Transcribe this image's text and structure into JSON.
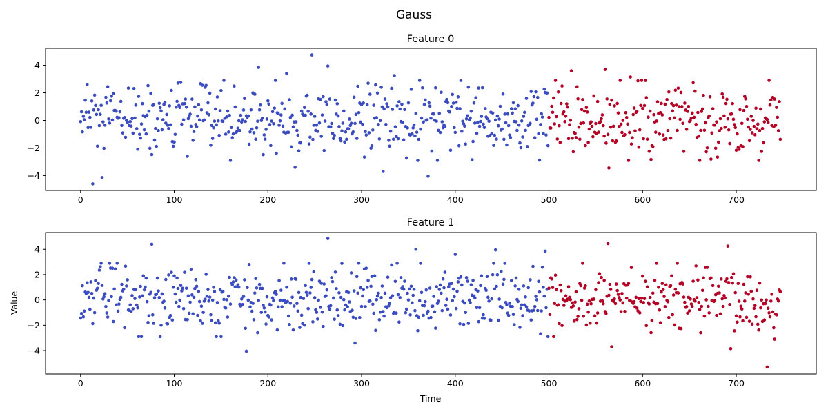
{
  "figure": {
    "suptitle": "Gauss"
  },
  "colors": {
    "blue": "#3b4cc0",
    "red": "#b40426",
    "axis": "#000000"
  },
  "chart_data": [
    {
      "type": "scatter",
      "title": "Feature 0",
      "xlabel": "",
      "ylabel": "",
      "xlim": [
        -37.4,
        785.4
      ],
      "ylim": [
        -5.08,
        5.23
      ],
      "xticks": [
        0,
        100,
        200,
        300,
        400,
        500,
        600,
        700
      ],
      "yticks": [
        -4,
        -2,
        0,
        2,
        4
      ],
      "grid": false,
      "n_points": 748,
      "segment_split": 500,
      "noise_seed": 12345,
      "highlights": [
        {
          "x": 247,
          "y": 4.75
        },
        {
          "x": 264,
          "y": 3.95
        },
        {
          "x": 190,
          "y": 3.85
        },
        {
          "x": 220,
          "y": 3.4
        },
        {
          "x": 335,
          "y": 3.25
        },
        {
          "x": 524,
          "y": 3.6
        },
        {
          "x": 560,
          "y": 3.7
        },
        {
          "x": 13,
          "y": -4.6
        },
        {
          "x": 23,
          "y": -4.15
        },
        {
          "x": 371,
          "y": -4.05
        },
        {
          "x": 323,
          "y": -3.7
        },
        {
          "x": 229,
          "y": -3.4
        },
        {
          "x": 564,
          "y": -3.45
        },
        {
          "x": 7,
          "y": 2.6
        },
        {
          "x": 587,
          "y": 3.15
        }
      ]
    },
    {
      "type": "scatter",
      "title": "Feature 1",
      "xlabel": "Time",
      "ylabel": "Value",
      "xlim": [
        -37.4,
        785.4
      ],
      "ylim": [
        -5.85,
        5.32
      ],
      "xticks": [
        0,
        100,
        200,
        300,
        400,
        500,
        600,
        700
      ],
      "yticks": [
        -4,
        -2,
        0,
        2,
        4
      ],
      "grid": false,
      "n_points": 748,
      "segment_split": 500,
      "noise_seed": 67890,
      "highlights": [
        {
          "x": 264,
          "y": 4.85
        },
        {
          "x": 76,
          "y": 4.4
        },
        {
          "x": 563,
          "y": 4.45
        },
        {
          "x": 691,
          "y": 4.25
        },
        {
          "x": 358,
          "y": 4.0
        },
        {
          "x": 443,
          "y": 3.95
        },
        {
          "x": 733,
          "y": -5.3
        },
        {
          "x": 177,
          "y": -4.05
        },
        {
          "x": 694,
          "y": -3.85
        },
        {
          "x": 567,
          "y": -3.7
        },
        {
          "x": 293,
          "y": -3.4
        },
        {
          "x": 741,
          "y": -3.1
        },
        {
          "x": 496,
          "y": 3.85
        },
        {
          "x": 400,
          "y": 3.6
        }
      ]
    }
  ]
}
